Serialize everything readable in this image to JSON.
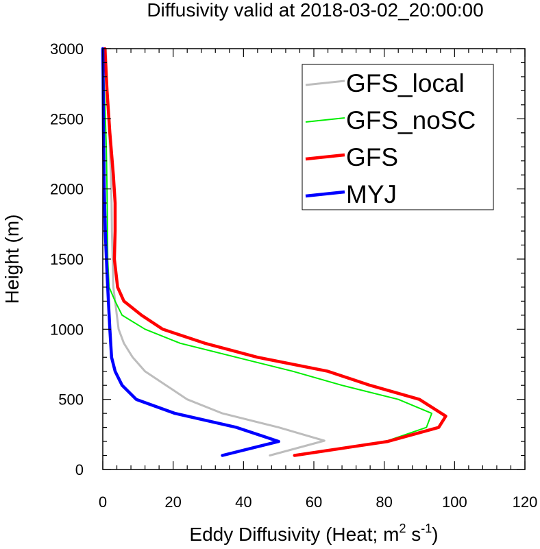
{
  "chart_data": {
    "type": "line",
    "title": "Diffusivity valid at 2018-03-02_20:00:00",
    "xlabel_main": "Eddy Diffusivity (Heat; m",
    "xlabel_sup1": "2",
    "xlabel_mid": " s",
    "xlabel_sup2": "-1",
    "xlabel_end": ")",
    "ylabel": "Height (m)",
    "xlim": [
      0,
      120
    ],
    "ylim": [
      0,
      3000
    ],
    "xticks": [
      0,
      20,
      40,
      60,
      80,
      100,
      120
    ],
    "yticks": [
      0,
      500,
      1000,
      1500,
      2000,
      2500,
      3000
    ],
    "xtick_labels": [
      "0",
      "20",
      "40",
      "60",
      "80",
      "100",
      "120"
    ],
    "ytick_labels": [
      "0",
      "500",
      "1000",
      "1500",
      "2000",
      "2500",
      "3000"
    ],
    "legend_position": "top-right",
    "grid": false,
    "series": [
      {
        "name": "GFS_local",
        "color": "#bdbdbd",
        "width": 3,
        "points": [
          [
            47.5,
            100
          ],
          [
            63,
            205
          ],
          [
            50,
            300
          ],
          [
            34,
            400
          ],
          [
            24,
            500
          ],
          [
            18,
            600
          ],
          [
            12,
            700
          ],
          [
            8.5,
            800
          ],
          [
            6,
            900
          ],
          [
            4.5,
            1000
          ],
          [
            4,
            1100
          ],
          [
            3.5,
            1200
          ],
          [
            3,
            1300
          ],
          [
            2.8,
            1500
          ],
          [
            2.6,
            1700
          ],
          [
            2.5,
            1900
          ],
          [
            2.3,
            2100
          ],
          [
            2,
            2300
          ],
          [
            1.7,
            2500
          ],
          [
            1.3,
            2700
          ],
          [
            1,
            2900
          ],
          [
            0.9,
            3000
          ]
        ]
      },
      {
        "name": "GFS_noSC",
        "color": "#00ee00",
        "width": 2,
        "points": [
          [
            55,
            100
          ],
          [
            81,
            205
          ],
          [
            92,
            300
          ],
          [
            93.5,
            400
          ],
          [
            84,
            500
          ],
          [
            68,
            600
          ],
          [
            54,
            700
          ],
          [
            38,
            800
          ],
          [
            22,
            900
          ],
          [
            12,
            1000
          ],
          [
            5.5,
            1100
          ],
          [
            3.5,
            1200
          ],
          [
            1.8,
            1300
          ],
          [
            1.4,
            1500
          ],
          [
            1.3,
            1800
          ],
          [
            1.2,
            2000
          ],
          [
            1,
            2300
          ],
          [
            0.6,
            2600
          ],
          [
            0.3,
            2800
          ],
          [
            0.1,
            3000
          ]
        ]
      },
      {
        "name": "GFS",
        "color": "#ff0000",
        "width": 4.5,
        "points": [
          [
            54.5,
            100
          ],
          [
            81,
            200
          ],
          [
            95.5,
            300
          ],
          [
            97.5,
            380
          ],
          [
            90,
            500
          ],
          [
            76,
            600
          ],
          [
            64,
            700
          ],
          [
            44,
            800
          ],
          [
            29,
            900
          ],
          [
            17,
            1000
          ],
          [
            11,
            1100
          ],
          [
            6,
            1200
          ],
          [
            4.2,
            1300
          ],
          [
            3.3,
            1500
          ],
          [
            3.5,
            1700
          ],
          [
            3.5,
            1900
          ],
          [
            3,
            2100
          ],
          [
            2,
            2400
          ],
          [
            1.2,
            2700
          ],
          [
            0.6,
            3000
          ]
        ]
      },
      {
        "name": "MYJ",
        "color": "#0000ff",
        "width": 4.5,
        "points": [
          [
            34,
            100
          ],
          [
            50,
            200
          ],
          [
            38,
            300
          ],
          [
            20.5,
            400
          ],
          [
            9.5,
            500
          ],
          [
            5.5,
            600
          ],
          [
            3.5,
            700
          ],
          [
            2.5,
            800
          ],
          [
            2,
            1000
          ],
          [
            1.6,
            1200
          ],
          [
            1.2,
            1400
          ],
          [
            0.7,
            1700
          ],
          [
            0.4,
            2000
          ],
          [
            0.2,
            2400
          ],
          [
            0.1,
            2800
          ],
          [
            0,
            3000
          ]
        ]
      }
    ]
  }
}
